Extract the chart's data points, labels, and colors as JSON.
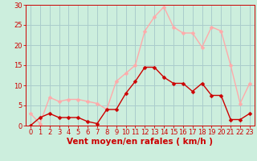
{
  "x": [
    0,
    1,
    2,
    3,
    4,
    5,
    6,
    7,
    8,
    9,
    10,
    11,
    12,
    13,
    14,
    15,
    16,
    17,
    18,
    19,
    20,
    21,
    22,
    23
  ],
  "y_mean": [
    0,
    2,
    3,
    2,
    2,
    2,
    1,
    0.5,
    4,
    4,
    8,
    11,
    14.5,
    14.5,
    12,
    10.5,
    10.5,
    8.5,
    10.5,
    7.5,
    7.5,
    1.5,
    1.5,
    3
  ],
  "y_gusts": [
    3,
    0.5,
    7,
    6,
    6.5,
    6.5,
    6,
    5.5,
    4,
    11,
    13,
    15,
    23.5,
    27,
    29.5,
    24.5,
    23,
    23,
    19.5,
    24.5,
    23.5,
    15,
    5.5,
    10.5
  ],
  "mean_color": "#cc0000",
  "gusts_color": "#ffaaaa",
  "bg_color": "#cceedd",
  "grid_color": "#aacccc",
  "axis_color": "#cc0000",
  "xlabel": "Vent moyen/en rafales ( km/h )",
  "ylim": [
    0,
    30
  ],
  "xlim": [
    -0.5,
    23.5
  ],
  "yticks": [
    0,
    5,
    10,
    15,
    20,
    25,
    30
  ],
  "xticks": [
    0,
    1,
    2,
    3,
    4,
    5,
    6,
    7,
    8,
    9,
    10,
    11,
    12,
    13,
    14,
    15,
    16,
    17,
    18,
    19,
    20,
    21,
    22,
    23
  ],
  "marker_size": 2.5,
  "line_width": 1.0,
  "xlabel_fontsize": 7.5,
  "tick_fontsize": 6
}
